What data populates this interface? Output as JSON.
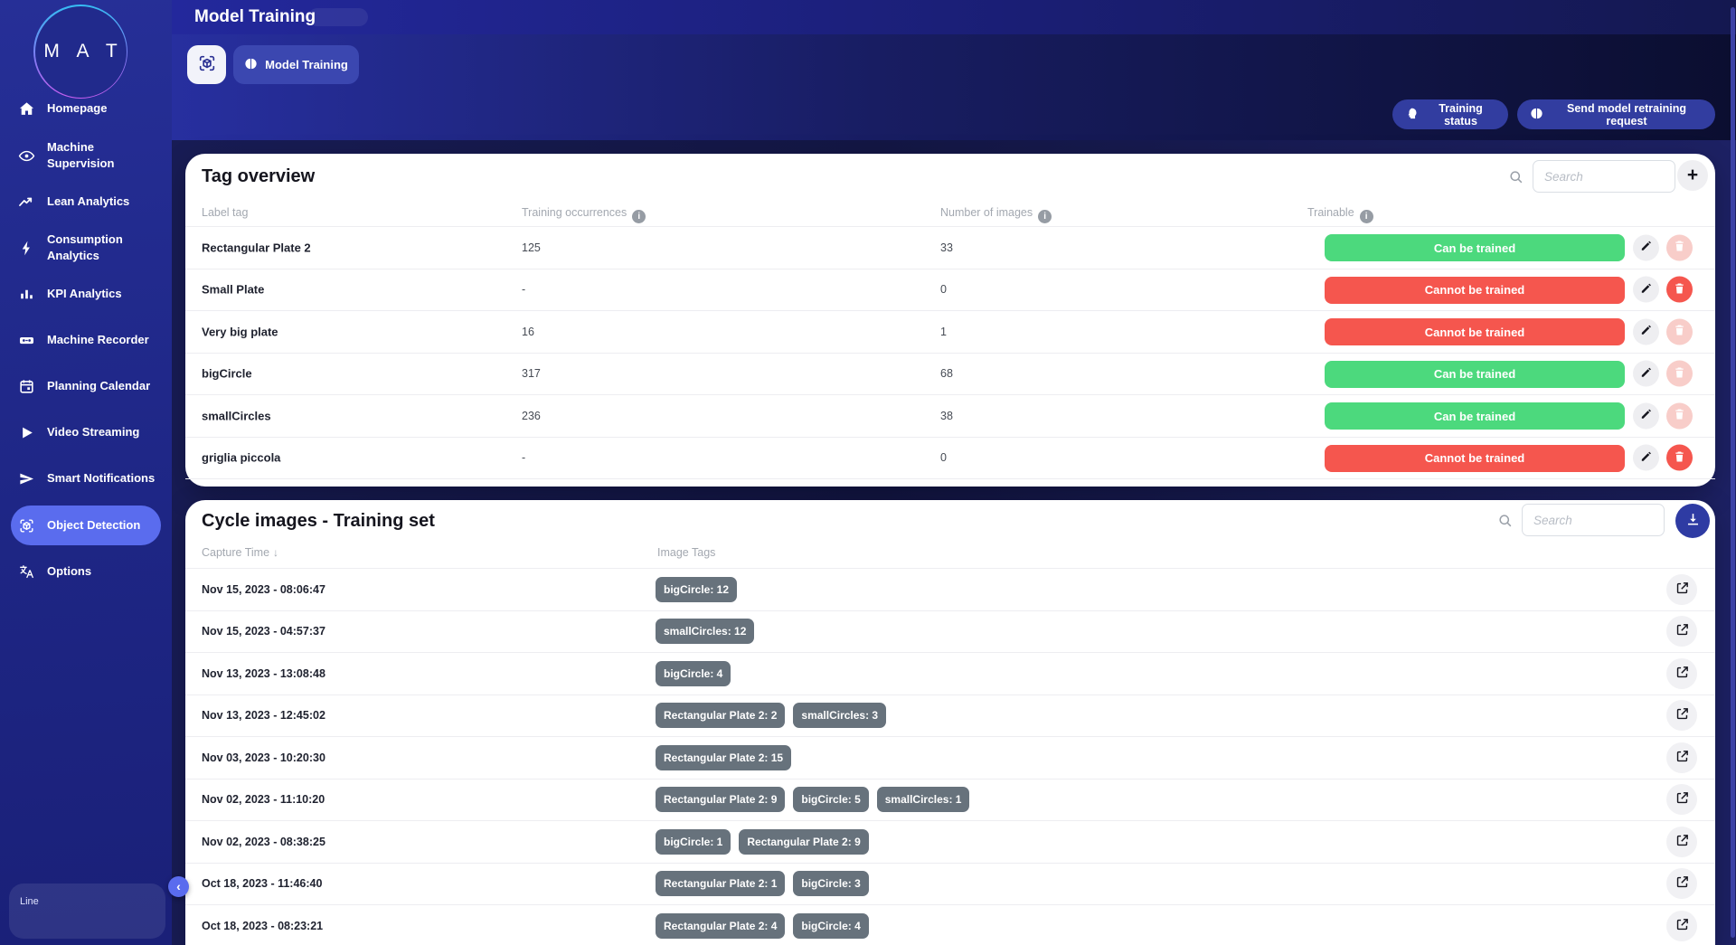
{
  "sidebar": {
    "logo_text": "M A T",
    "items": [
      {
        "label": "Homepage",
        "icon": "home"
      },
      {
        "label": "Machine Supervision",
        "icon": "eye"
      },
      {
        "label": "Lean Analytics",
        "icon": "trend-line"
      },
      {
        "label": "Consumption Analytics",
        "icon": "bolt"
      },
      {
        "label": "KPI Analytics",
        "icon": "bar-chart"
      },
      {
        "label": "Machine Recorder",
        "icon": "recorder"
      },
      {
        "label": "Planning Calendar",
        "icon": "calendar"
      },
      {
        "label": "Video Streaming",
        "icon": "play"
      },
      {
        "label": "Smart Notifications",
        "icon": "send"
      },
      {
        "label": "Object Detection",
        "icon": "scan-cube",
        "active": true
      },
      {
        "label": "Options",
        "icon": "translate"
      }
    ],
    "bottom_label": "Line",
    "collapse_icon": "‹"
  },
  "header": {
    "title": "Model Training"
  },
  "toolbar": {
    "tab_label": "Model Training"
  },
  "actions": {
    "training_status": "Training status",
    "send_retraining": "Send model retraining request"
  },
  "icons": {
    "info": "i",
    "plus": "+",
    "sort_desc": "↓"
  },
  "tag_overview": {
    "title": "Tag overview",
    "search_placeholder": "Search",
    "columns": {
      "label": "Label tag",
      "occurrences": "Training occurrences",
      "images": "Number of images",
      "trainable": "Trainable"
    },
    "rows": [
      {
        "label": "Rectangular Plate 2",
        "occurrences": "125",
        "images": "33",
        "trainable": "Can be trained",
        "trainable_state": "green",
        "delete_enabled": false
      },
      {
        "label": "Small Plate",
        "occurrences": "-",
        "images": "0",
        "trainable": "Cannot be trained",
        "trainable_state": "red",
        "delete_enabled": true
      },
      {
        "label": "Very big plate",
        "occurrences": "16",
        "images": "1",
        "trainable": "Cannot be trained",
        "trainable_state": "red",
        "delete_enabled": false
      },
      {
        "label": "bigCircle",
        "occurrences": "317",
        "images": "68",
        "trainable": "Can be trained",
        "trainable_state": "green",
        "delete_enabled": false
      },
      {
        "label": "smallCircles",
        "occurrences": "236",
        "images": "38",
        "trainable": "Can be trained",
        "trainable_state": "green",
        "delete_enabled": false
      },
      {
        "label": "griglia piccola",
        "occurrences": "-",
        "images": "0",
        "trainable": "Cannot be trained",
        "trainable_state": "red",
        "delete_enabled": true
      }
    ]
  },
  "cycle_images": {
    "title": "Cycle images - Training set",
    "search_placeholder": "Search",
    "columns": {
      "time": "Capture Time",
      "tags": "Image Tags"
    },
    "rows": [
      {
        "time": "Nov 15, 2023 - 08:06:47",
        "tags": [
          "bigCircle: 12"
        ]
      },
      {
        "time": "Nov 15, 2023 - 04:57:37",
        "tags": [
          "smallCircles: 12"
        ]
      },
      {
        "time": "Nov 13, 2023 - 13:08:48",
        "tags": [
          "bigCircle: 4"
        ]
      },
      {
        "time": "Nov 13, 2023 - 12:45:02",
        "tags": [
          "Rectangular Plate 2: 2",
          "smallCircles: 3"
        ]
      },
      {
        "time": "Nov 03, 2023 - 10:20:30",
        "tags": [
          "Rectangular Plate 2: 15"
        ]
      },
      {
        "time": "Nov 02, 2023 - 11:10:20",
        "tags": [
          "Rectangular Plate 2: 9",
          "bigCircle: 5",
          "smallCircles: 1"
        ]
      },
      {
        "time": "Nov 02, 2023 - 08:38:25",
        "tags": [
          "bigCircle: 1",
          "Rectangular Plate 2: 9"
        ]
      },
      {
        "time": "Oct 18, 2023 - 11:46:40",
        "tags": [
          "Rectangular Plate 2: 1",
          "bigCircle: 3"
        ]
      },
      {
        "time": "Oct 18, 2023 - 08:23:21",
        "tags": [
          "Rectangular Plate 2: 4",
          "bigCircle: 4"
        ]
      }
    ]
  },
  "colors": {
    "accent": "#5a6cee",
    "green": "#4cd97d",
    "red": "#f5564e",
    "chip": "#67727c"
  }
}
